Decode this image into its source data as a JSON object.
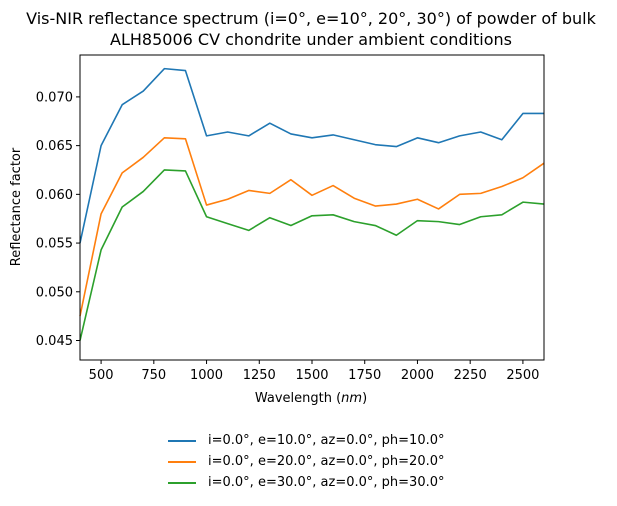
{
  "chart_data": {
    "type": "line",
    "title_lines": [
      "Vis-NIR reflectance spectrum (i=0°, e=10°, 20°, 30°) of powder of bulk",
      "ALH85006 CV chondrite under ambient conditions"
    ],
    "xlabel_text": "Wavelength (",
    "xlabel_unit": "nm",
    "xlabel_close": ")",
    "ylabel": "Reflectance factor",
    "xlim": [
      400,
      2600
    ],
    "ylim": [
      0.043,
      0.0743
    ],
    "xticks": [
      500,
      750,
      1000,
      1250,
      1500,
      1750,
      2000,
      2250,
      2500
    ],
    "yticks": [
      {
        "value": 0.045,
        "label": "0.045"
      },
      {
        "value": 0.05,
        "label": "0.050"
      },
      {
        "value": 0.055,
        "label": "0.055"
      },
      {
        "value": 0.06,
        "label": "0.060"
      },
      {
        "value": 0.065,
        "label": "0.065"
      },
      {
        "value": 0.07,
        "label": "0.070"
      }
    ],
    "grid": false,
    "legend_position": "below plot",
    "x": [
      400,
      500,
      600,
      700,
      800,
      900,
      1000,
      1100,
      1200,
      1300,
      1400,
      1500,
      1600,
      1700,
      1800,
      1900,
      2000,
      2100,
      2200,
      2300,
      2400,
      2500,
      2600
    ],
    "series": [
      {
        "name": "i=0.0°, e=10.0°, az=0.0°, ph=10.0°",
        "color": "#1f77b4",
        "values": [
          0.055,
          0.065,
          0.0692,
          0.0706,
          0.0729,
          0.0727,
          0.066,
          0.0664,
          0.066,
          0.0673,
          0.0662,
          0.0658,
          0.0661,
          0.0656,
          0.0651,
          0.0649,
          0.0658,
          0.0653,
          0.066,
          0.0664,
          0.0656,
          0.0683,
          0.0683
        ]
      },
      {
        "name": "i=0.0°, e=20.0°, az=0.0°, ph=20.0°",
        "color": "#ff7f0e",
        "values": [
          0.0475,
          0.058,
          0.0622,
          0.0638,
          0.0658,
          0.0657,
          0.0589,
          0.0595,
          0.0604,
          0.0601,
          0.0615,
          0.0599,
          0.0609,
          0.0596,
          0.0588,
          0.059,
          0.0595,
          0.0585,
          0.06,
          0.0601,
          0.0608,
          0.0617,
          0.0632
        ]
      },
      {
        "name": "i=0.0°, e=30.0°, az=0.0°, ph=30.0°",
        "color": "#2ca02c",
        "values": [
          0.045,
          0.0543,
          0.0587,
          0.0603,
          0.0625,
          0.0624,
          0.0577,
          0.057,
          0.0563,
          0.0576,
          0.0568,
          0.0578,
          0.0579,
          0.0572,
          0.0568,
          0.0558,
          0.0573,
          0.0572,
          0.0569,
          0.0577,
          0.0579,
          0.0592,
          0.059
        ]
      }
    ]
  }
}
